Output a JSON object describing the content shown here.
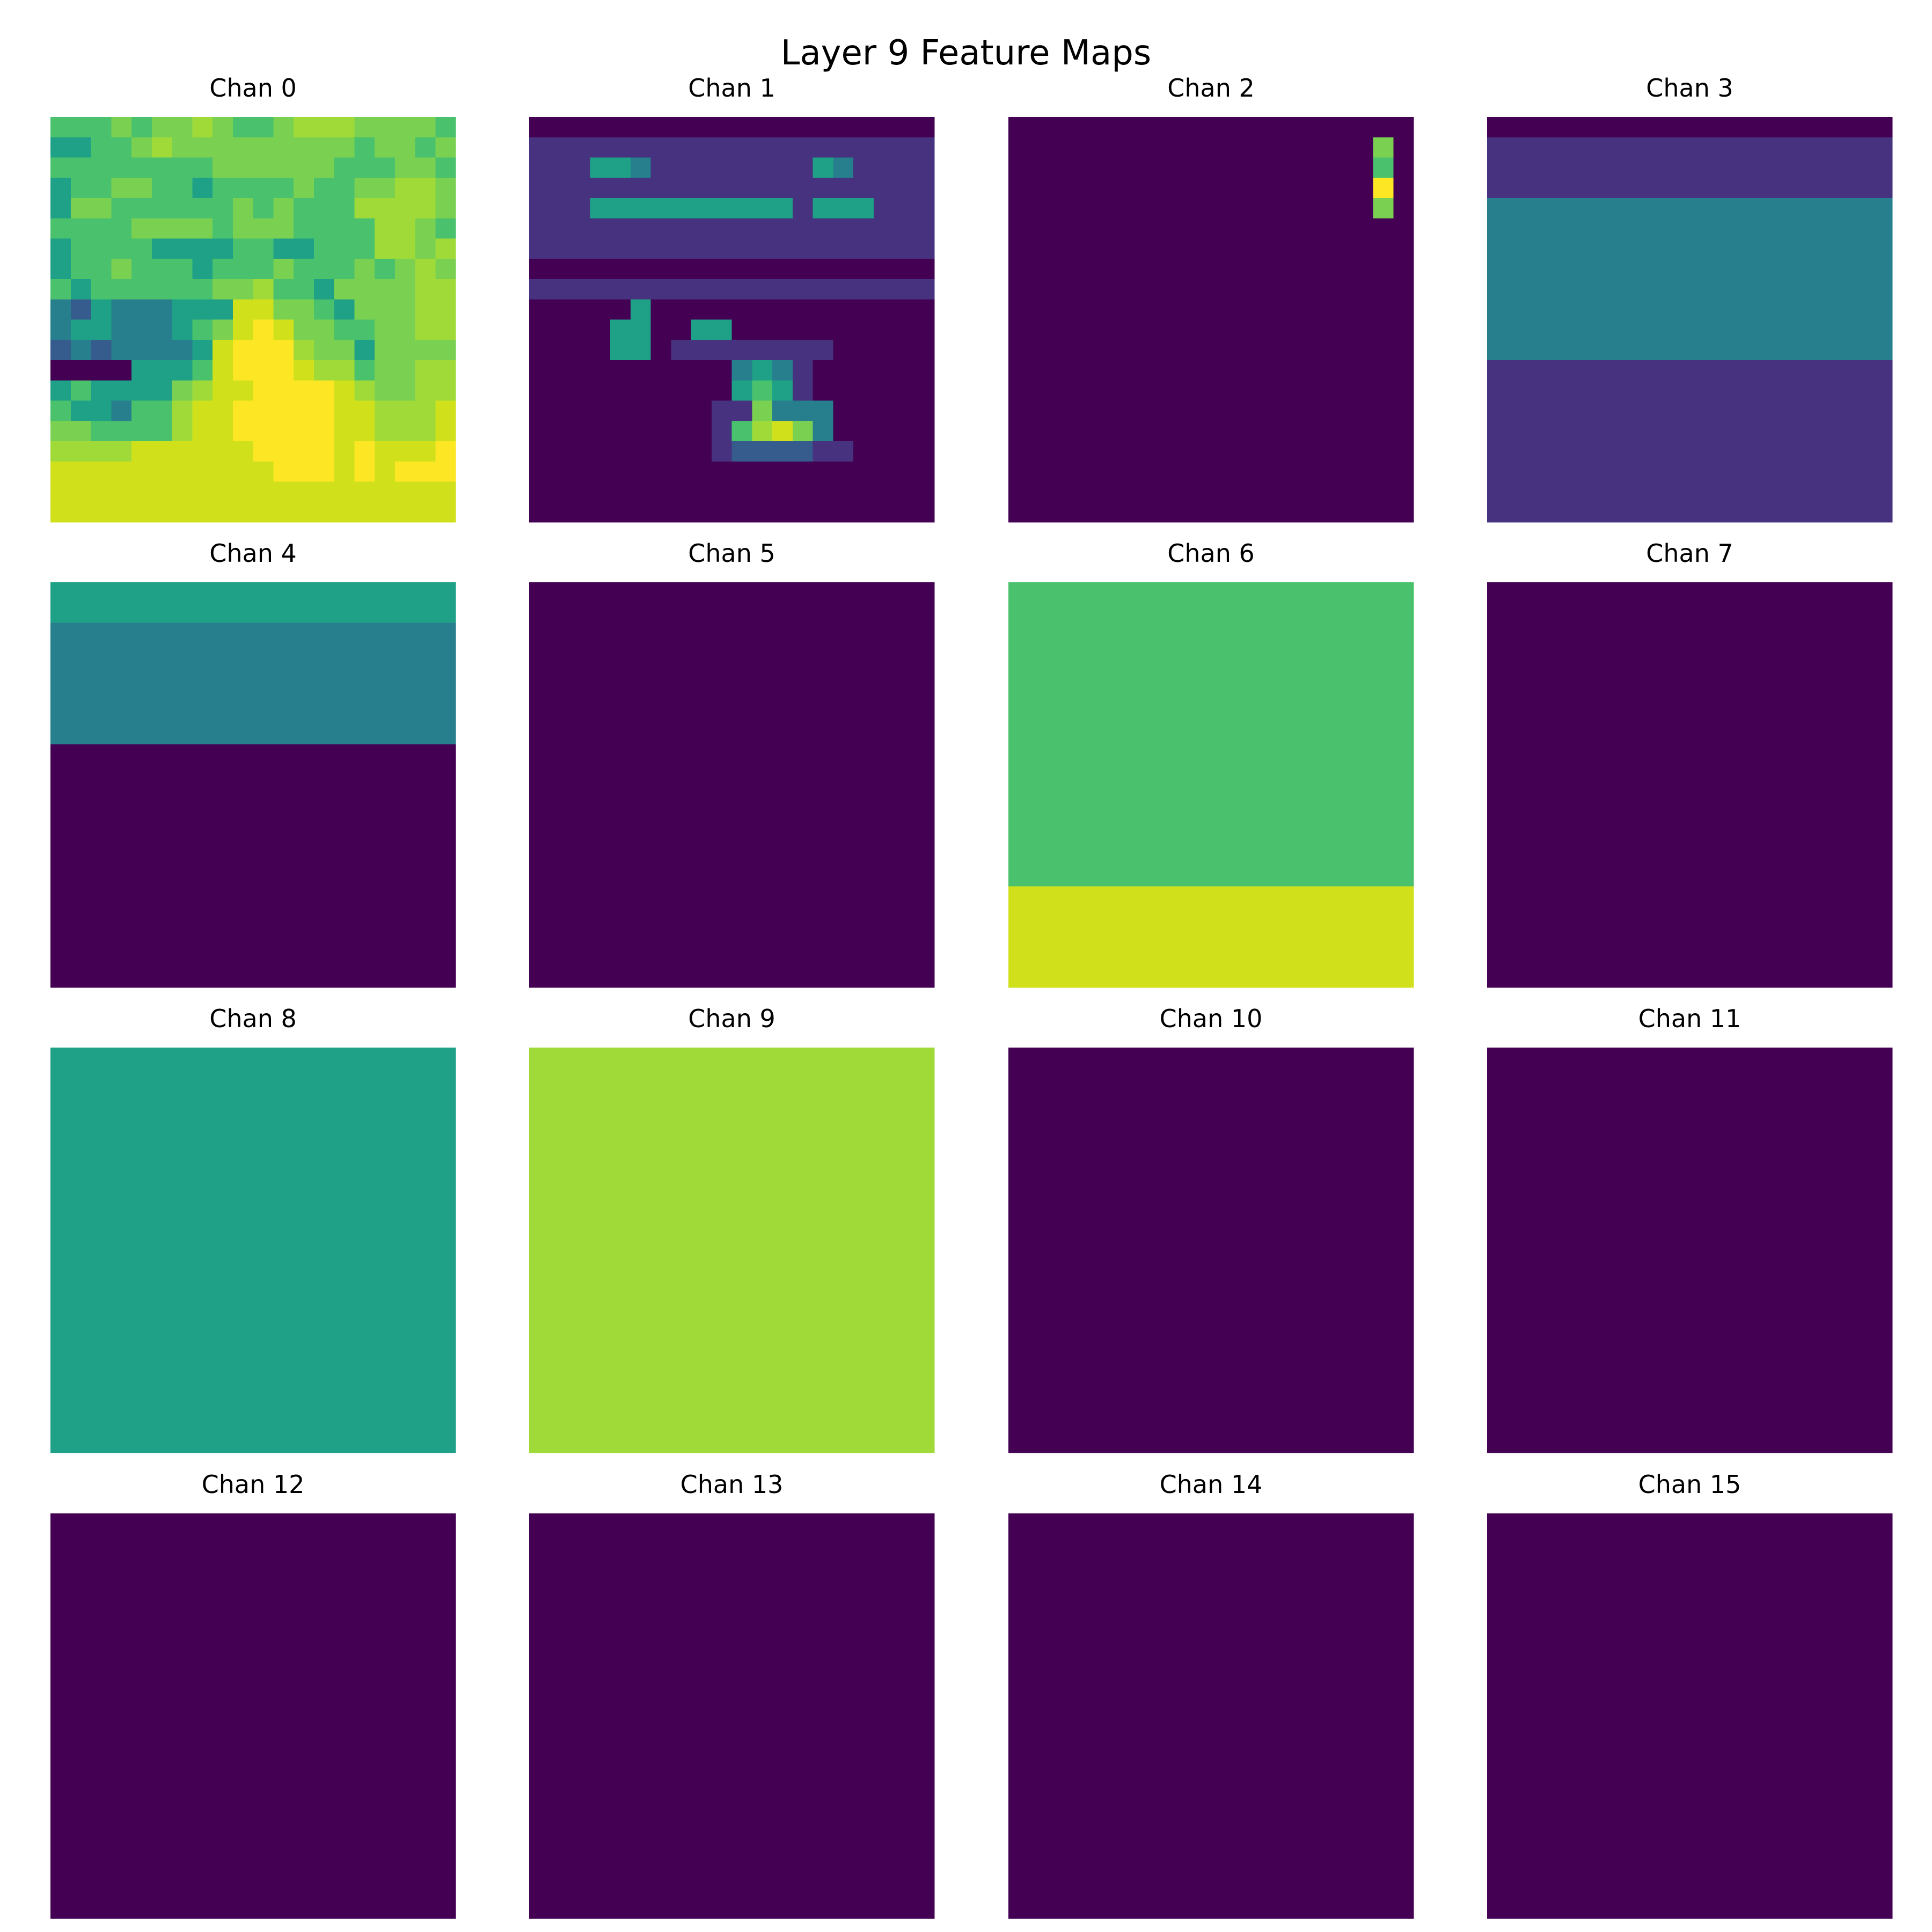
{
  "chart_data": {
    "type": "heatmap",
    "title": "Layer 9 Feature Maps",
    "colormap": "viridis",
    "grid_rows": 4,
    "grid_cols": 4,
    "map_size": 20,
    "value_range": [
      0,
      1
    ],
    "panels": [
      {
        "title": "Chan 0",
        "rows": [
          "55565667655677766665",
          "44556766666666656656",
          "55555555666666555665",
          "45566554555565566776",
          "46655555565655577776",
          "55556666566655557765",
          "45555444455445557767",
          "45565554555655565676",
          "54555555667554666677",
          "32433344488665466677",
          "34433345689866556677",
          "23233334899976646666",
          "00004445899987756677",
          "45444467889999876677",
          "54435578899999887778",
          "66555578899999887778",
          "77778888889999898889",
          "88888888888999898999",
          "88888888888888888888",
          "88888888888888888888"
        ]
      },
      {
        "title": "Chan 1",
        "rows": [
          "00000000000000000000",
          "11111111111111111111",
          "11144311111111431111",
          "11111111111111111111",
          "11144444444441444111",
          "11111111111111111111",
          "11111111111111111111",
          "00000000000000000000",
          "11111111111111111111",
          "00000400000000000000",
          "00004400440000000000",
          "00004401111111100000",
          "00000000003431000000",
          "00000000004541000000",
          "00000000011633300000",
          "00000000015786300000",
          "00000000012222110000",
          "00000000000000000000",
          "00000000000000000000",
          "00000000000000000000"
        ]
      },
      {
        "title": "Chan 2",
        "rows": [
          "00000000000000000000",
          "00000000000000000060",
          "00000000000000000050",
          "00000000000000000090",
          "00000000000000000060",
          "00000000000000000000",
          "00000000000000000000",
          "00000000000000000000",
          "00000000000000000000",
          "00000000000000000000",
          "00000000000000000000",
          "00000000000000000000",
          "00000000000000000000",
          "00000000000000000000",
          "00000000000000000000",
          "00000000000000000000",
          "00000000000000000000",
          "00000000000000000000",
          "00000000000000000000",
          "00000000000000000000"
        ]
      },
      {
        "title": "Chan 3",
        "rows": [
          "00000000000000000000",
          "11111111111111111111",
          "11111111111111111111",
          "11111111111111111111",
          "33333333333333333333",
          "33333333333333333333",
          "33333333333333333333",
          "33333333333333333333",
          "33333333333333333333",
          "33333333333333333333",
          "33333333333333333333",
          "33333333333333333333",
          "11111111111111111111",
          "11111111111111111111",
          "11111111111111111111",
          "11111111111111111111",
          "11111111111111111111",
          "11111111111111111111",
          "11111111111111111111",
          "11111111111111111111"
        ]
      },
      {
        "title": "Chan 4",
        "rows": [
          "44444444444444444444",
          "44444444444444444444",
          "33333333333333333333",
          "33333333333333333333",
          "33333333333333333333",
          "33333333333333333333",
          "33333333333333333333",
          "33333333333333333333",
          "00000000000000000000",
          "00000000000000000000",
          "00000000000000000000",
          "00000000000000000000",
          "00000000000000000000",
          "00000000000000000000",
          "00000000000000000000",
          "00000000000000000000",
          "00000000000000000000",
          "00000000000000000000",
          "00000000000000000000",
          "00000000000000000000"
        ]
      },
      {
        "title": "Chan 5",
        "rows": [
          "00000000000000000000",
          "00000000000000000000",
          "00000000000000000000",
          "00000000000000000000",
          "00000000000000000000",
          "00000000000000000000",
          "00000000000000000000",
          "00000000000000000000",
          "00000000000000000000",
          "00000000000000000000",
          "00000000000000000000",
          "00000000000000000000",
          "00000000000000000000",
          "00000000000000000000",
          "00000000000000000000",
          "00000000000000000000",
          "00000000000000000000",
          "00000000000000000000",
          "00000000000000000000",
          "00000000000000000000"
        ]
      },
      {
        "title": "Chan 6",
        "rows": [
          "55555555555555555555",
          "55555555555555555555",
          "55555555555555555555",
          "55555555555555555555",
          "55555555555555555555",
          "55555555555555555555",
          "55555555555555555555",
          "55555555555555555555",
          "55555555555555555555",
          "55555555555555555555",
          "55555555555555555555",
          "55555555555555555555",
          "55555555555555555555",
          "55555555555555555555",
          "55555555555555555555",
          "88888888888888888888",
          "88888888888888888888",
          "88888888888888888888",
          "88888888888888888888",
          "88888888888888888888"
        ]
      },
      {
        "title": "Chan 7",
        "rows": [
          "00000000000000000000",
          "00000000000000000000",
          "00000000000000000000",
          "00000000000000000000",
          "00000000000000000000",
          "00000000000000000000",
          "00000000000000000000",
          "00000000000000000000",
          "00000000000000000000",
          "00000000000000000000",
          "00000000000000000000",
          "00000000000000000000",
          "00000000000000000000",
          "00000000000000000000",
          "00000000000000000000",
          "00000000000000000000",
          "00000000000000000000",
          "00000000000000000000",
          "00000000000000000000",
          "00000000000000000000"
        ]
      },
      {
        "title": "Chan 8",
        "rows": [
          "44444444444444444444",
          "44444444444444444444",
          "44444444444444444444",
          "44444444444444444444",
          "44444444444444444444",
          "44444444444444444444",
          "44444444444444444444",
          "44444444444444444444",
          "44444444444444444444",
          "44444444444444444444",
          "44444444444444444444",
          "44444444444444444444",
          "44444444444444444444",
          "44444444444444444444",
          "44444444444444444444",
          "44444444444444444444",
          "44444444444444444444",
          "44444444444444444444",
          "44444444444444444444",
          "44444444444444444444"
        ]
      },
      {
        "title": "Chan 9",
        "rows": [
          "77777777777777777777",
          "77777777777777777777",
          "77777777777777777777",
          "77777777777777777777",
          "77777777777777777777",
          "77777777777777777777",
          "77777777777777777777",
          "77777777777777777777",
          "77777777777777777777",
          "77777777777777777777",
          "77777777777777777777",
          "77777777777777777777",
          "77777777777777777777",
          "77777777777777777777",
          "77777777777777777777",
          "77777777777777777777",
          "77777777777777777777",
          "77777777777777777777",
          "77777777777777777777",
          "77777777777777777777"
        ]
      },
      {
        "title": "Chan 10",
        "rows": [
          "00000000000000000000",
          "00000000000000000000",
          "00000000000000000000",
          "00000000000000000000",
          "00000000000000000000",
          "00000000000000000000",
          "00000000000000000000",
          "00000000000000000000",
          "00000000000000000000",
          "00000000000000000000",
          "00000000000000000000",
          "00000000000000000000",
          "00000000000000000000",
          "00000000000000000000",
          "00000000000000000000",
          "00000000000000000000",
          "00000000000000000000",
          "00000000000000000000",
          "00000000000000000000",
          "00000000000000000000"
        ]
      },
      {
        "title": "Chan 11",
        "rows": [
          "00000000000000000000",
          "00000000000000000000",
          "00000000000000000000",
          "00000000000000000000",
          "00000000000000000000",
          "00000000000000000000",
          "00000000000000000000",
          "00000000000000000000",
          "00000000000000000000",
          "00000000000000000000",
          "00000000000000000000",
          "00000000000000000000",
          "00000000000000000000",
          "00000000000000000000",
          "00000000000000000000",
          "00000000000000000000",
          "00000000000000000000",
          "00000000000000000000",
          "00000000000000000000",
          "00000000000000000000"
        ]
      },
      {
        "title": "Chan 12",
        "rows": [
          "00000000000000000000",
          "00000000000000000000",
          "00000000000000000000",
          "00000000000000000000",
          "00000000000000000000",
          "00000000000000000000",
          "00000000000000000000",
          "00000000000000000000",
          "00000000000000000000",
          "00000000000000000000",
          "00000000000000000000",
          "00000000000000000000",
          "00000000000000000000",
          "00000000000000000000",
          "00000000000000000000",
          "00000000000000000000",
          "00000000000000000000",
          "00000000000000000000",
          "00000000000000000000",
          "00000000000000000000"
        ]
      },
      {
        "title": "Chan 13",
        "rows": [
          "00000000000000000000",
          "00000000000000000000",
          "00000000000000000000",
          "00000000000000000000",
          "00000000000000000000",
          "00000000000000000000",
          "00000000000000000000",
          "00000000000000000000",
          "00000000000000000000",
          "00000000000000000000",
          "00000000000000000000",
          "00000000000000000000",
          "00000000000000000000",
          "00000000000000000000",
          "00000000000000000000",
          "00000000000000000000",
          "00000000000000000000",
          "00000000000000000000",
          "00000000000000000000",
          "00000000000000000000"
        ]
      },
      {
        "title": "Chan 14",
        "rows": [
          "00000000000000000000",
          "00000000000000000000",
          "00000000000000000000",
          "00000000000000000000",
          "00000000000000000000",
          "00000000000000000000",
          "00000000000000000000",
          "00000000000000000000",
          "00000000000000000000",
          "00000000000000000000",
          "00000000000000000000",
          "00000000000000000000",
          "00000000000000000000",
          "00000000000000000000",
          "00000000000000000000",
          "00000000000000000000",
          "00000000000000000000",
          "00000000000000000000",
          "00000000000000000000",
          "00000000000000000000"
        ]
      },
      {
        "title": "Chan 15",
        "rows": [
          "00000000000000000000",
          "00000000000000000000",
          "00000000000000000000",
          "00000000000000000000",
          "00000000000000000000",
          "00000000000000000000",
          "00000000000000000000",
          "00000000000000000000",
          "00000000000000000000",
          "00000000000000000000",
          "00000000000000000000",
          "00000000000000000000",
          "00000000000000000000",
          "00000000000000000000",
          "00000000000000000000",
          "00000000000000000000",
          "00000000000000000000",
          "00000000000000000000",
          "00000000000000000000",
          "00000000000000000000"
        ]
      }
    ]
  }
}
